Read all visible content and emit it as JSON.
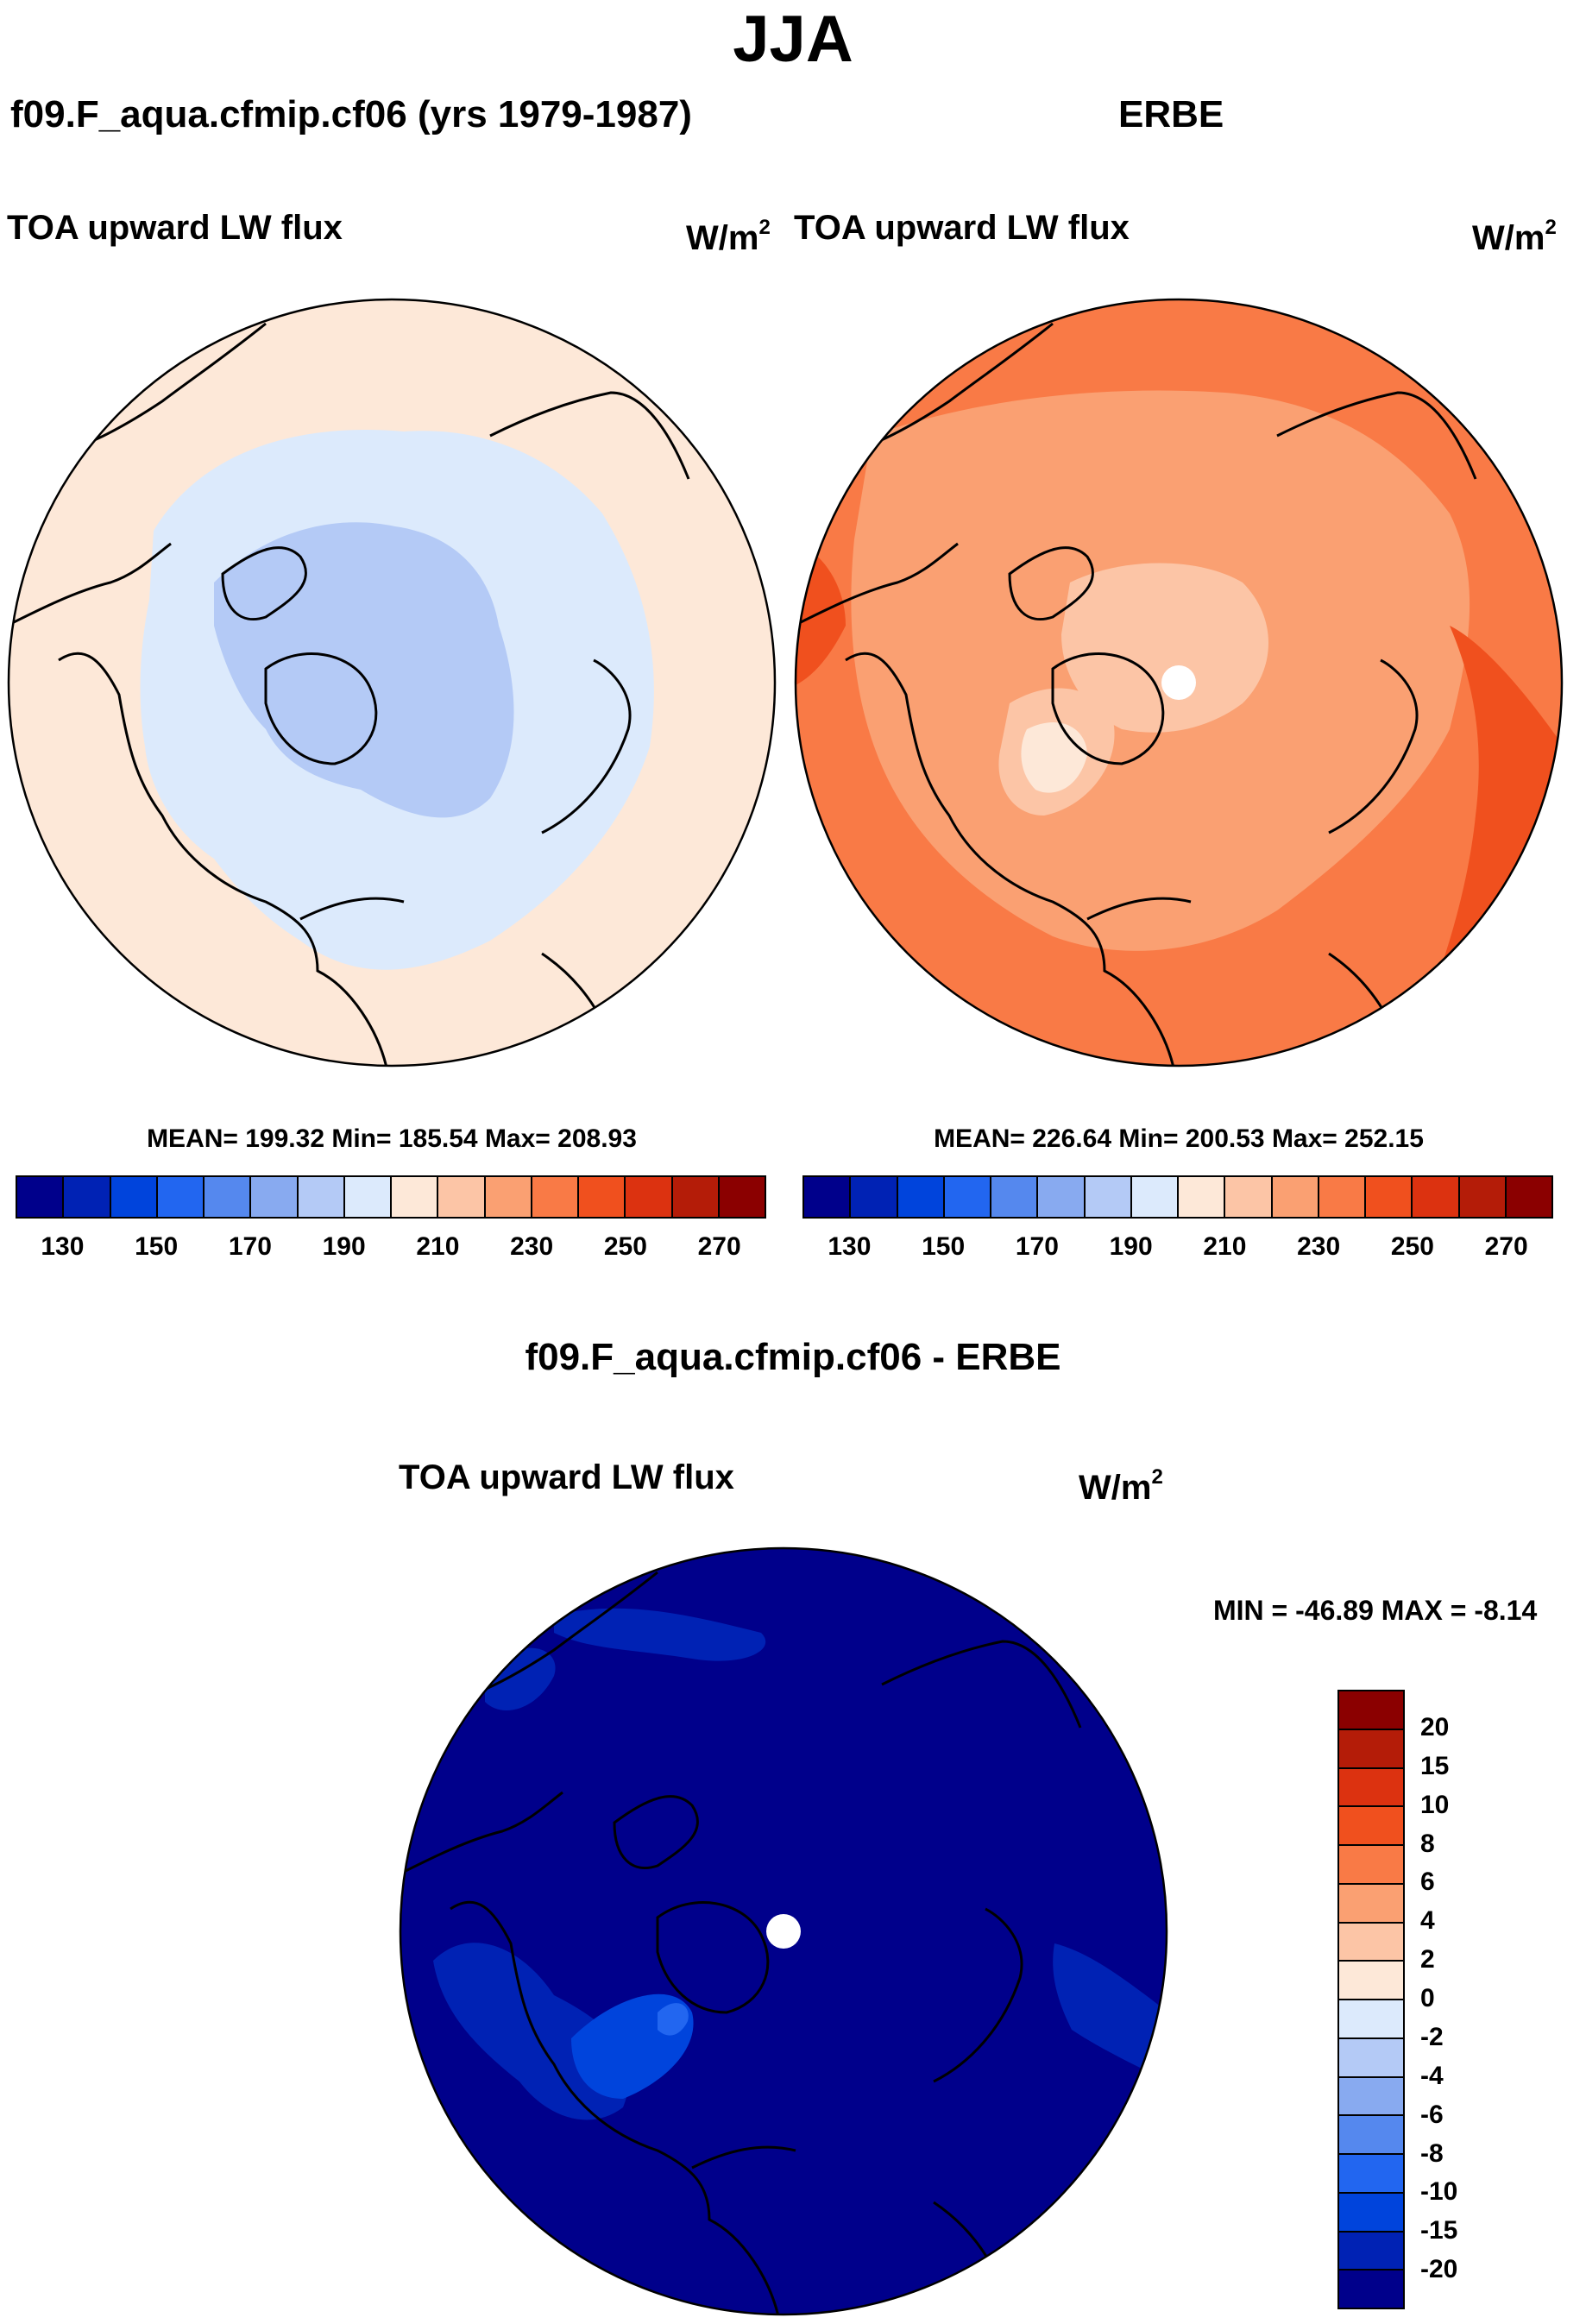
{
  "title": "JJA",
  "panels": {
    "model": {
      "case_title": "f09.F_aqua.cfmip.cf06 (yrs 1979-1987)",
      "variable": "TOA upward LW flux",
      "units_base": "W/m",
      "units_exp": "2",
      "stats": "MEAN= 199.32  Min= 185.54  Max= 208.93",
      "mean": 199.32,
      "min": 185.54,
      "max": 208.93
    },
    "obs": {
      "case_title": "ERBE",
      "variable": "TOA upward LW flux",
      "units_base": "W/m",
      "units_exp": "2",
      "stats": "MEAN= 226.64  Min= 200.53  Max= 252.15",
      "mean": 226.64,
      "min": 200.53,
      "max": 252.15
    },
    "diff": {
      "case_title": "f09.F_aqua.cfmip.cf06 - ERBE",
      "variable": "TOA upward LW flux",
      "units_base": "W/m",
      "units_exp": "2",
      "stats": "MIN = -46.89 MAX =  -8.14",
      "min": -46.89,
      "max": -8.14
    }
  },
  "colorbar": {
    "colors": [
      "#00008b",
      "#0022b4",
      "#0044dc",
      "#2266f0",
      "#5588ee",
      "#88aaf0",
      "#b4caf6",
      "#dceafc",
      "#fde8d8",
      "#fcc5a6",
      "#faa072",
      "#f97a46",
      "#f0501e",
      "#dc3210",
      "#b41c08",
      "#8b0000"
    ],
    "tick_labels": [
      "130",
      "150",
      "170",
      "190",
      "210",
      "230",
      "250",
      "270"
    ]
  },
  "diff_colorbar": {
    "colors": [
      "#8b0000",
      "#b41c08",
      "#dc3210",
      "#f0501e",
      "#f97a46",
      "#faa072",
      "#fcc5a6",
      "#fde8d8",
      "#dceafc",
      "#b4caf6",
      "#88aaf0",
      "#5588ee",
      "#2266f0",
      "#0044dc",
      "#0022b4",
      "#00008b"
    ],
    "tick_labels": [
      "20",
      "15",
      "10",
      "8",
      "6",
      "4",
      "2",
      "0",
      "-2",
      "-4",
      "-6",
      "-8",
      "-10",
      "-15",
      "-20"
    ]
  }
}
